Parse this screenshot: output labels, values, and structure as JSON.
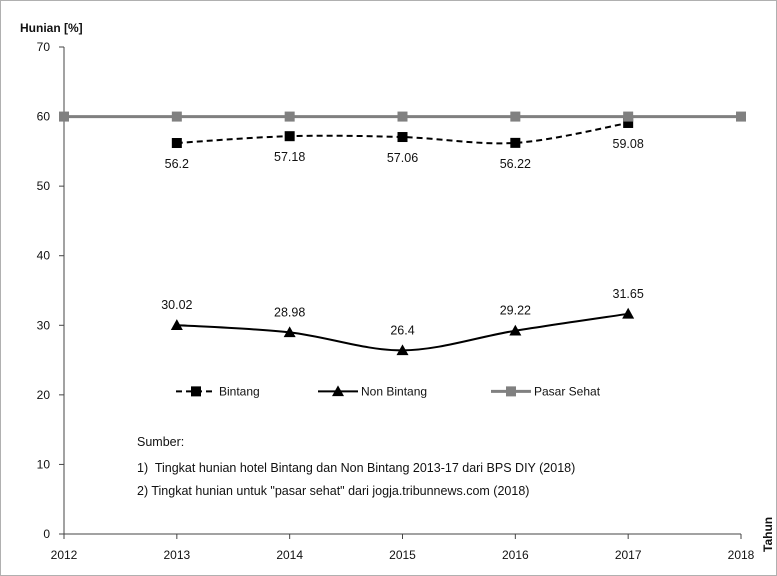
{
  "chart_data": {
    "type": "line",
    "ylabel": "Hunian [%]",
    "xlabel": "Tahun",
    "x": [
      2012,
      2013,
      2014,
      2015,
      2016,
      2017,
      2018
    ],
    "xlim": [
      2012,
      2018
    ],
    "ylim": [
      0,
      70
    ],
    "yticks": [
      0,
      10,
      20,
      30,
      40,
      50,
      60,
      70
    ],
    "grid": false,
    "series": [
      {
        "name": "Bintang",
        "x": [
          2013,
          2014,
          2015,
          2016,
          2017
        ],
        "values": [
          56.2,
          57.18,
          57.06,
          56.22,
          59.08
        ],
        "labels": [
          "56.2",
          "57.18",
          "57.06",
          "56.22",
          "59.08"
        ],
        "color": "#000000",
        "style": "dashed",
        "marker": "square"
      },
      {
        "name": "Non Bintang",
        "x": [
          2013,
          2014,
          2015,
          2016,
          2017
        ],
        "values": [
          30.02,
          28.98,
          26.4,
          29.22,
          31.65
        ],
        "labels": [
          "30.02",
          "28.98",
          "26.4",
          "29.22",
          "31.65"
        ],
        "color": "#000000",
        "style": "solid",
        "marker": "triangle"
      },
      {
        "name": "Pasar Sehat",
        "x": [
          2012,
          2013,
          2014,
          2015,
          2016,
          2017,
          2018
        ],
        "values": [
          60,
          60,
          60,
          60,
          60,
          60,
          60
        ],
        "color": "#808080",
        "style": "solid",
        "marker": "square"
      }
    ],
    "legend_position": "inside-lower",
    "annotation": {
      "title": "Sumber:",
      "lines": [
        "1)  Tingkat hunian hotel Bintang dan Non Bintang 2013-17 dari BPS DIY (2018)",
        "2) Tingkat hunian untuk \"pasar sehat\" dari jogja.tribunnews.com (2018)"
      ]
    }
  }
}
